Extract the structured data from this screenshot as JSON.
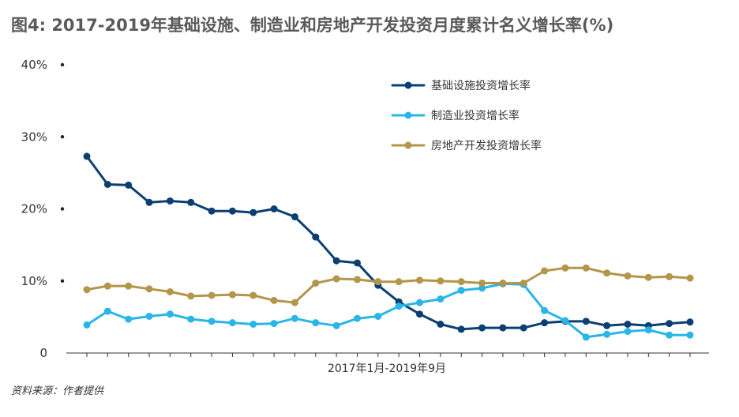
{
  "title": "图4: 2017-2019年基础设施、制造业和房地产开发投资月度累计名义增长率(%)",
  "source": "资料来源：作者提供",
  "chart_data": {
    "type": "line",
    "title": "图4: 2017-2019年基础设施、制造业和房地产开发投资月度累计名义增长率(%)",
    "xlabel": "2017年1月-2019年9月",
    "ylabel": "",
    "ylim": [
      0,
      40
    ],
    "yticks": [
      0,
      10,
      20,
      30,
      40
    ],
    "ytick_labels": [
      "0",
      "10%",
      "20%",
      "30%",
      "40%"
    ],
    "grid": false,
    "legend_position": "top-right",
    "n_points": 30,
    "series": [
      {
        "name": "基础设施投资增长率",
        "color": "#0b3f73",
        "values": [
          27.3,
          23.4,
          23.3,
          20.9,
          21.1,
          20.9,
          19.7,
          19.7,
          19.5,
          20.0,
          18.9,
          16.1,
          12.8,
          12.5,
          9.4,
          7.1,
          5.4,
          4.0,
          3.3,
          3.5,
          3.5,
          3.5,
          4.2,
          4.4,
          4.4,
          3.8,
          4.0,
          3.8,
          4.1,
          4.3
        ]
      },
      {
        "name": "制造业投资增长率",
        "color": "#29b6e6",
        "values": [
          3.9,
          5.8,
          4.7,
          5.1,
          5.4,
          4.7,
          4.4,
          4.2,
          4.0,
          4.1,
          4.8,
          4.2,
          3.8,
          4.8,
          5.1,
          6.5,
          7.0,
          7.5,
          8.7,
          9.0,
          9.6,
          9.5,
          5.9,
          4.5,
          2.2,
          2.6,
          3.0,
          3.2,
          2.5,
          2.5
        ]
      },
      {
        "name": "房地产开发投资增长率",
        "color": "#b3964a",
        "values": [
          8.8,
          9.3,
          9.3,
          8.9,
          8.5,
          7.9,
          8.0,
          8.1,
          8.0,
          7.3,
          7.0,
          9.7,
          10.3,
          10.2,
          9.9,
          9.9,
          10.1,
          10.0,
          9.9,
          9.7,
          9.7,
          9.7,
          11.4,
          11.8,
          11.8,
          11.1,
          10.7,
          10.5,
          10.6,
          10.4
        ]
      }
    ]
  }
}
